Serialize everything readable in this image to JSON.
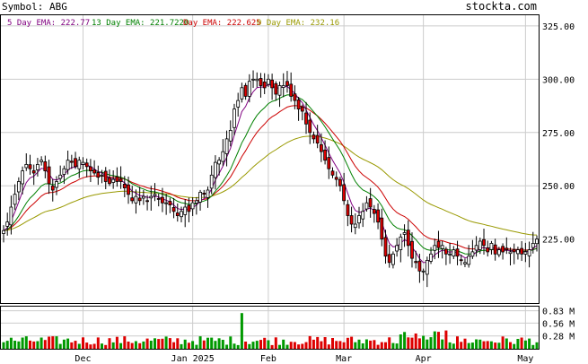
{
  "header": {
    "symbol_label": "Symbol: ABG",
    "brand": "stockta.com"
  },
  "legend": [
    {
      "name": "5 Day EMA:",
      "value": "222.77",
      "color": "#800080"
    },
    {
      "name": "13 Day EMA:",
      "value": "221.7220",
      "color": "#008000"
    },
    {
      "name": "Day EMA:",
      "value": "222.625",
      "color": "#cc0000"
    },
    {
      "name": "0 Day EMA:",
      "value": "232.16",
      "color": "#999900"
    }
  ],
  "colors": {
    "up": "#ffffff",
    "down": "#dd0000",
    "volume_up": "#009900",
    "volume_down": "#dd0000",
    "grid": "#cccccc",
    "frame": "#000000"
  },
  "chart_data": {
    "type": "candlestick",
    "price_axis": {
      "ticks": [
        225,
        250,
        275,
        300,
        325
      ],
      "labels": [
        "225.00",
        "250.00",
        "275.00",
        "300.00",
        "325.00"
      ],
      "ylim": [
        195,
        330
      ]
    },
    "volume_axis": {
      "ticks": [
        0.28,
        0.56,
        0.83
      ],
      "labels": [
        "0.28 M",
        "0.56 M",
        "0.83 M"
      ],
      "ylim": [
        0,
        0.92
      ]
    },
    "month_labels": [
      {
        "label": "Dec",
        "index": 21
      },
      {
        "label": "Jan 2025",
        "index": 50
      },
      {
        "label": "Feb",
        "index": 70
      },
      {
        "label": "Mar",
        "index": 90
      },
      {
        "label": "Apr",
        "index": 111
      },
      {
        "label": "May",
        "index": 138
      }
    ],
    "close": [
      229,
      233,
      240,
      246,
      252,
      257,
      260,
      258,
      256,
      260,
      262,
      257,
      251,
      248,
      252,
      255,
      258,
      262,
      261,
      259,
      262,
      261,
      259,
      257,
      256,
      254,
      255,
      252,
      251,
      253,
      252,
      252,
      249,
      246,
      243,
      245,
      243,
      245,
      243,
      245,
      246,
      244,
      242,
      242,
      241,
      238,
      236,
      238,
      240,
      238,
      242,
      243,
      247,
      246,
      248,
      255,
      261,
      262,
      266,
      272,
      276,
      286,
      290,
      296,
      292,
      299,
      300,
      300,
      297,
      296,
      300,
      296,
      293,
      297,
      297,
      297,
      292,
      290,
      286,
      285,
      279,
      275,
      272,
      270,
      266,
      262,
      258,
      255,
      253,
      250,
      243,
      236,
      232,
      232,
      236,
      238,
      242,
      240,
      237,
      233,
      225,
      217,
      214,
      218,
      222,
      226,
      228,
      222,
      216,
      214,
      210,
      210,
      215,
      218,
      222,
      221,
      222,
      218,
      218,
      220,
      217,
      215,
      214,
      217,
      219,
      222,
      224,
      222,
      219,
      223,
      218,
      220,
      219,
      220,
      219,
      219,
      220,
      218,
      219,
      220,
      223,
      225
    ]
  }
}
